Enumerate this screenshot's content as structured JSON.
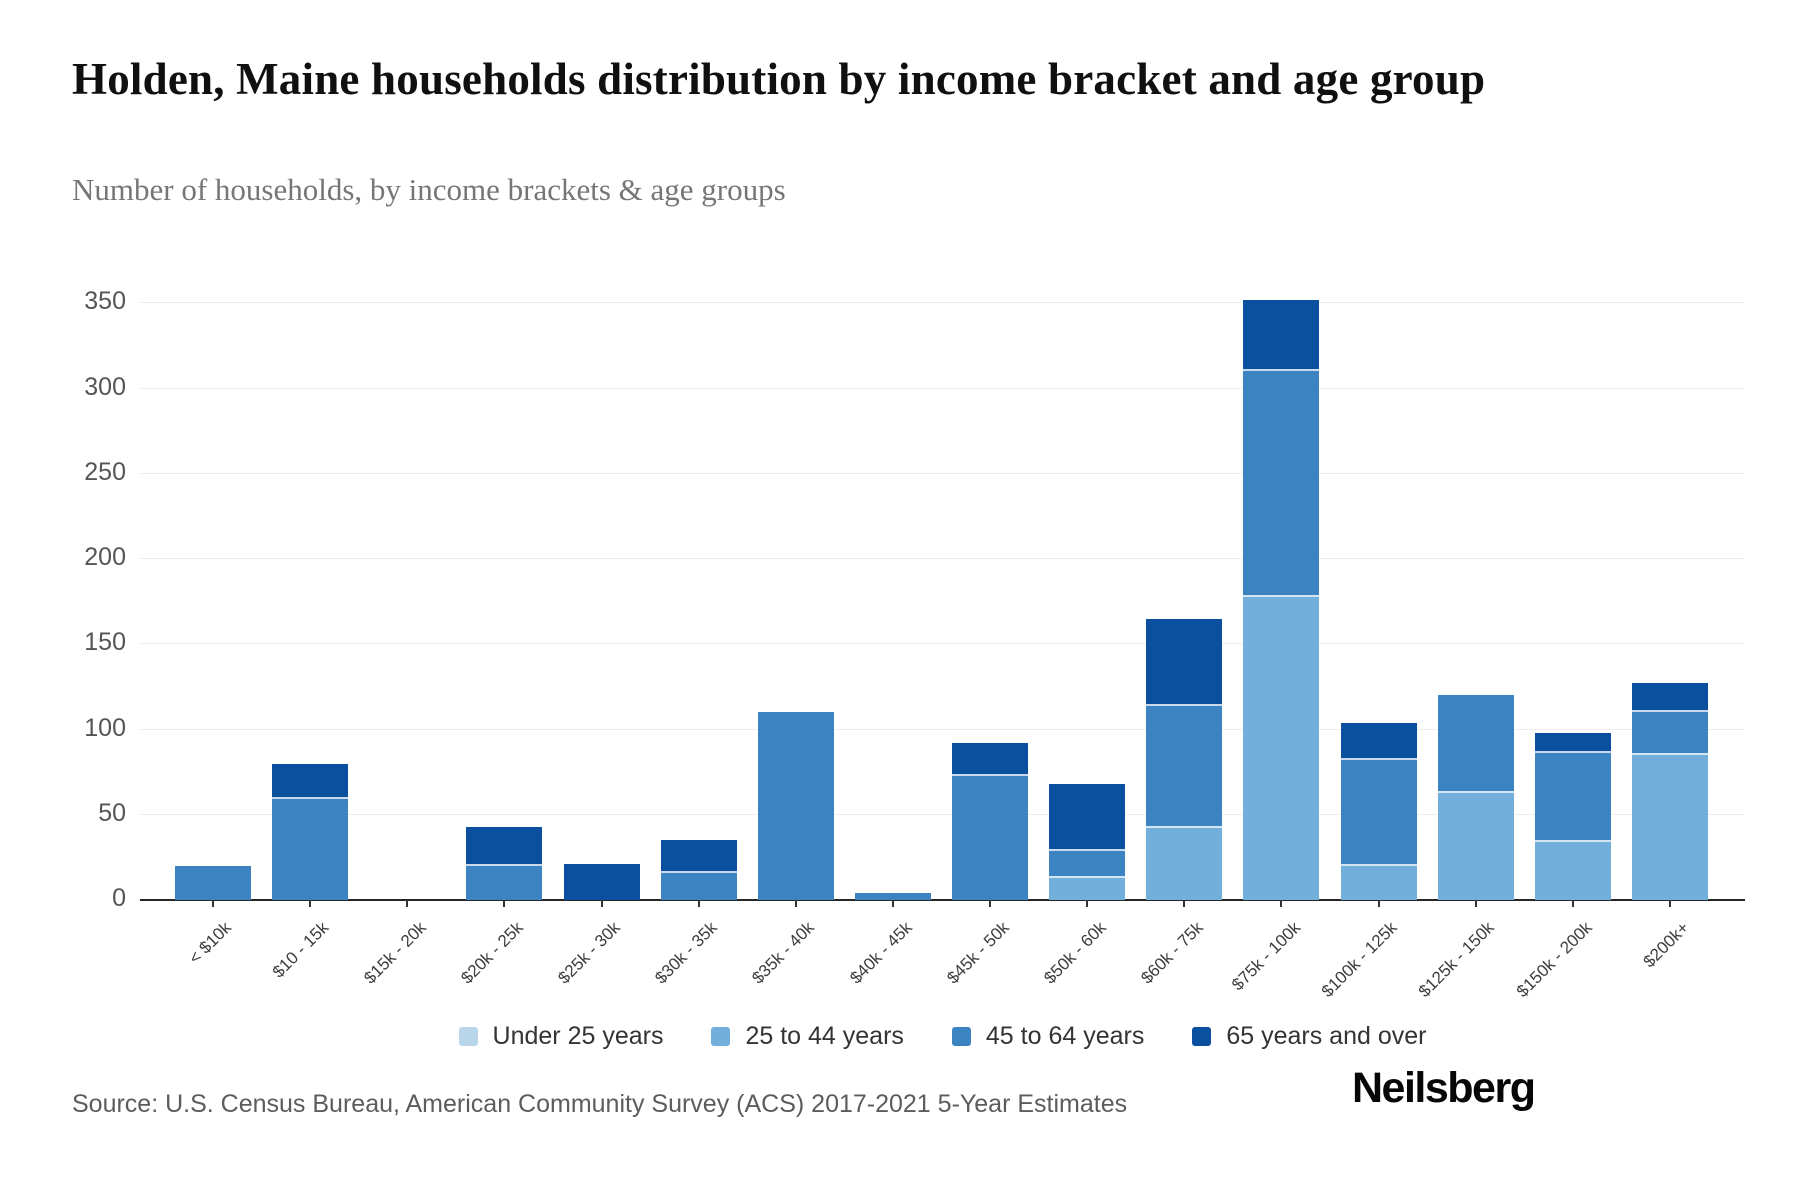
{
  "header": {
    "title": "Holden, Maine households distribution by income bracket and age group",
    "subtitle": "Number of households, by income brackets & age groups"
  },
  "footer": {
    "source": "Source: U.S. Census Bureau, American Community Survey (ACS) 2017-2021 5-Year Estimates",
    "brand": "Neilsberg"
  },
  "chart_data": {
    "type": "bar",
    "stacked": true,
    "title": "Holden, Maine households distribution by income bracket and age group",
    "subtitle": "Number of households, by income brackets & age groups",
    "xlabel": "",
    "ylabel": "",
    "categories": [
      "< $10k",
      "$10 - 15k",
      "$15k - 20k",
      "$20k - 25k",
      "$25k - 30k",
      "$30k - 35k",
      "$35k - 40k",
      "$40k - 45k",
      "$45k - 50k",
      "$50k - 60k",
      "$60k - 75k",
      "$75k - 100k",
      "$100k - 125k",
      "$125k - 150k",
      "$150k - 200k",
      "$200k+"
    ],
    "series": [
      {
        "name": "Under 25 years",
        "color": "#b9d5ea",
        "values": [
          0,
          0,
          0,
          0,
          0,
          0,
          0,
          0,
          0,
          0,
          0,
          0,
          0,
          0,
          0,
          0
        ]
      },
      {
        "name": "25 to 44 years",
        "color": "#72afda",
        "values": [
          0,
          0,
          0,
          0,
          0,
          0,
          0,
          0,
          0,
          13,
          42,
          178,
          20,
          63,
          34,
          85
        ]
      },
      {
        "name": "45 to 64 years",
        "color": "#3b84c1",
        "values": [
          20,
          59,
          0,
          20,
          0,
          16,
          110,
          4,
          73,
          16,
          72,
          132,
          62,
          57,
          52,
          25
        ]
      },
      {
        "name": "65 years and over",
        "color": "#0b509e",
        "values": [
          0,
          21,
          0,
          23,
          21,
          19,
          0,
          0,
          19,
          39,
          51,
          42,
          22,
          0,
          12,
          17
        ]
      }
    ],
    "totals": [
      20,
      80,
      0,
      43,
      21,
      35,
      110,
      4,
      92,
      68,
      165,
      352,
      104,
      120,
      98,
      127
    ],
    "y_axis": {
      "min": 0,
      "max": 350,
      "tick_interval": 50,
      "ticks": [
        0,
        50,
        100,
        150,
        200,
        250,
        300,
        350
      ]
    },
    "grid": true,
    "legend_position": "bottom",
    "colors": {
      "axis": "#262626",
      "gridline": "#eeeeee",
      "y_tick_text": "#555555",
      "x_tick_text": "#3d3d3d"
    }
  }
}
